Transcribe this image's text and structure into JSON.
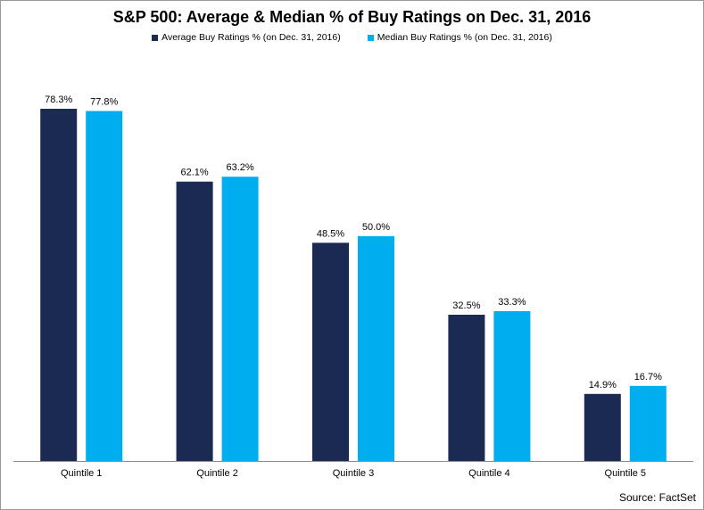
{
  "chart_data": {
    "type": "bar",
    "title": "S&P 500: Average & Median % of Buy Ratings on Dec. 31, 2016",
    "categories": [
      "Quintile 1",
      "Quintile 2",
      "Quintile 3",
      "Quintile 4",
      "Quintile 5"
    ],
    "series": [
      {
        "name": "Average Buy Ratings % (on Dec. 31, 2016)",
        "color": "#1b2a52",
        "values": [
          78.3,
          62.1,
          48.5,
          32.5,
          14.9
        ],
        "labels": [
          "78.3%",
          "62.1%",
          "48.5%",
          "32.5%",
          "14.9%"
        ]
      },
      {
        "name": "Median Buy Ratings % (on Dec. 31, 2016)",
        "color": "#00aeef",
        "values": [
          77.8,
          63.2,
          50.0,
          33.3,
          16.7
        ],
        "labels": [
          "77.8%",
          "63.2%",
          "50.0%",
          "33.3%",
          "16.7%"
        ]
      }
    ],
    "xlabel": "",
    "ylabel": "",
    "ylim": [
      0,
      100
    ],
    "grid": false,
    "legend": "top-center",
    "source": "Source: FactSet"
  }
}
